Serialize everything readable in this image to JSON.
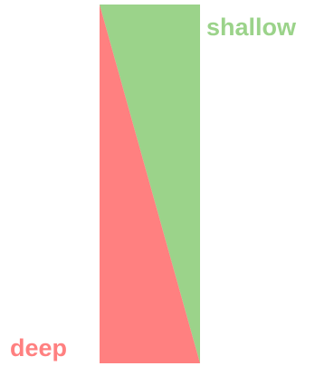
{
  "labels": {
    "shallow": "shallow",
    "deep": "deep"
  },
  "colors": {
    "shallow": "#9bd38a",
    "deep": "#ff8080",
    "background": "#ffffff"
  }
}
